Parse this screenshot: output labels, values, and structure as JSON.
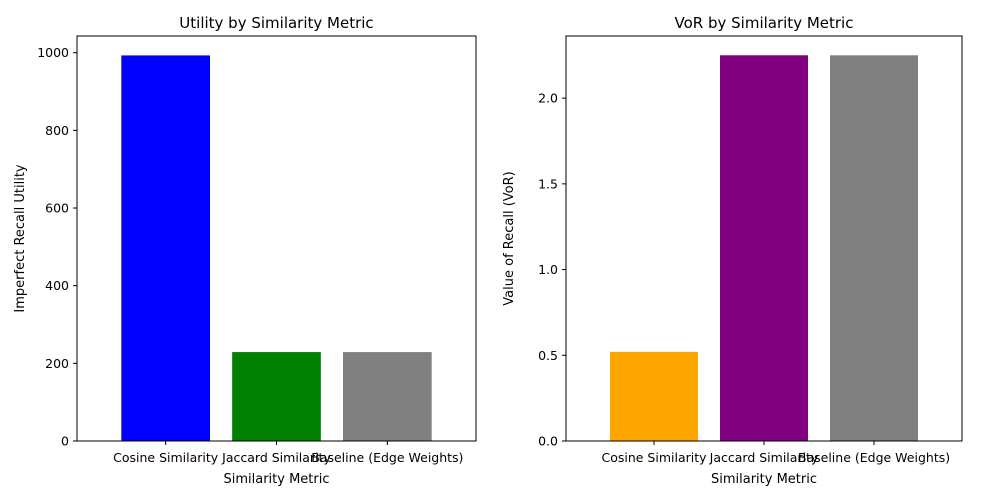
{
  "chart_data": [
    {
      "type": "bar",
      "title": "Utility by Similarity Metric",
      "xlabel": "Similarity Metric",
      "ylabel": "Imperfect Recall Utility",
      "categories": [
        "Cosine Similarity",
        "Jaccard Similarity",
        "Baseline (Edge Weights)"
      ],
      "values": [
        993,
        229,
        229
      ],
      "colors": [
        "#0000ff",
        "#008000",
        "#808080"
      ],
      "ylim": [
        0,
        1043
      ],
      "yticks": [
        0,
        200,
        400,
        600,
        800,
        1000
      ],
      "ytick_labels": [
        "0",
        "200",
        "400",
        "600",
        "800",
        "1000"
      ]
    },
    {
      "type": "bar",
      "title": "VoR by Similarity Metric",
      "xlabel": "Similarity Metric",
      "ylabel": "Value of Recall (VoR)",
      "categories": [
        "Cosine Similarity",
        "Jaccard Similarity",
        "Baseline (Edge Weights)"
      ],
      "values": [
        0.52,
        2.25,
        2.25
      ],
      "colors": [
        "#ffa500",
        "#800080",
        "#808080"
      ],
      "ylim": [
        0,
        2.3625
      ],
      "yticks": [
        0,
        0.5,
        1.0,
        1.5,
        2.0
      ],
      "ytick_labels": [
        "0.0",
        "0.5",
        "1.0",
        "1.5",
        "2.0"
      ]
    }
  ]
}
